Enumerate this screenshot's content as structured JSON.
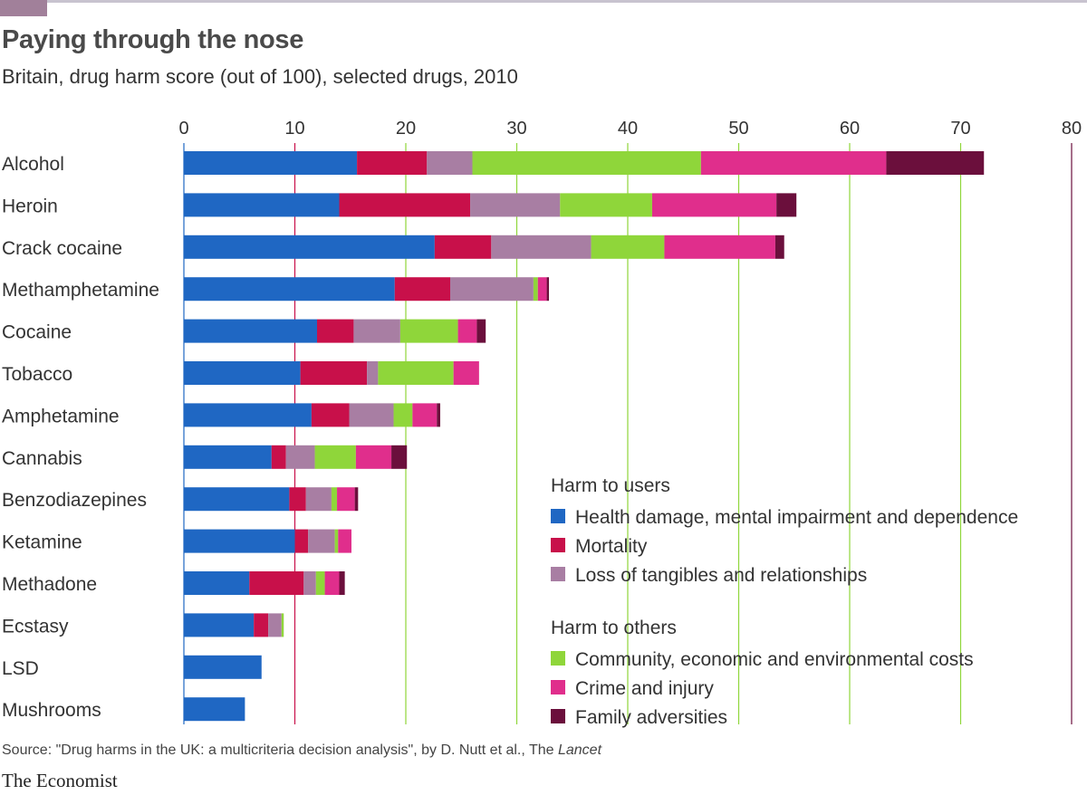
{
  "header": {
    "title": "Paying through the nose",
    "subtitle": "Britain, drug harm score (out of 100), selected drugs, 2010"
  },
  "footer": {
    "source_prefix": "Source: \"Drug harms in the UK: a multicriteria decision analysis\", by D. Nutt et al., The ",
    "source_journal": "Lancet",
    "brand": "The Economist"
  },
  "colors": {
    "health": "#1f67c3",
    "mortality": "#c8104a",
    "tangibles": "#a87ea3",
    "community": "#8fd63a",
    "crime": "#e02e8c",
    "family": "#6b0f3c"
  },
  "chart_data": {
    "type": "bar",
    "orientation": "horizontal",
    "stacked": true,
    "title": "Paying through the nose",
    "subtitle": "Britain, drug harm score (out of 100), selected drugs, 2010",
    "xlim": [
      0,
      80
    ],
    "xticks": [
      "0",
      "10",
      "20",
      "30",
      "40",
      "50",
      "60",
      "70",
      "80"
    ],
    "grid": true,
    "legend_position": "bottom-right",
    "legend_groups": [
      {
        "heading": "Harm to users",
        "keys": [
          "health",
          "mortality",
          "tangibles"
        ]
      },
      {
        "heading": "Harm to others",
        "keys": [
          "community",
          "crime",
          "family"
        ]
      }
    ],
    "categories": [
      "Alcohol",
      "Heroin",
      "Crack cocaine",
      "Methamphetamine",
      "Cocaine",
      "Tobacco",
      "Amphetamine",
      "Cannabis",
      "Benzodiazepines",
      "Ketamine",
      "Methadone",
      "Ecstasy",
      "LSD",
      "Mushrooms"
    ],
    "series": [
      {
        "key": "health",
        "name": "Health damage, mental impairment and dependence",
        "values": [
          15.6,
          14.0,
          22.6,
          19.0,
          12.0,
          10.5,
          11.5,
          7.9,
          9.5,
          10.0,
          5.9,
          6.3,
          7.0,
          5.5
        ]
      },
      {
        "key": "mortality",
        "name": "Mortality",
        "values": [
          6.3,
          11.8,
          5.1,
          5.0,
          3.3,
          6.0,
          3.4,
          1.3,
          1.5,
          1.2,
          4.9,
          1.3,
          0,
          0
        ]
      },
      {
        "key": "tangibles",
        "name": "Loss of tangibles and relationships",
        "values": [
          4.1,
          8.1,
          9.0,
          7.5,
          4.2,
          1.0,
          4.0,
          2.6,
          2.3,
          2.4,
          1.1,
          1.2,
          0,
          0
        ]
      },
      {
        "key": "community",
        "name": "Community, economic and environmental costs",
        "values": [
          20.6,
          8.3,
          6.6,
          0.4,
          5.2,
          6.8,
          1.7,
          3.7,
          0.5,
          0.3,
          0.8,
          0.2,
          0,
          0
        ]
      },
      {
        "key": "crime",
        "name": "Crime and injury",
        "values": [
          16.7,
          11.2,
          10.0,
          0.8,
          1.7,
          2.3,
          2.2,
          3.2,
          1.6,
          1.2,
          1.3,
          0,
          0,
          0
        ]
      },
      {
        "key": "family",
        "name": "Family adversities",
        "values": [
          8.8,
          1.8,
          0.8,
          0.2,
          0.8,
          0,
          0.3,
          1.4,
          0.3,
          0,
          0.5,
          0,
          0,
          0
        ]
      }
    ]
  }
}
